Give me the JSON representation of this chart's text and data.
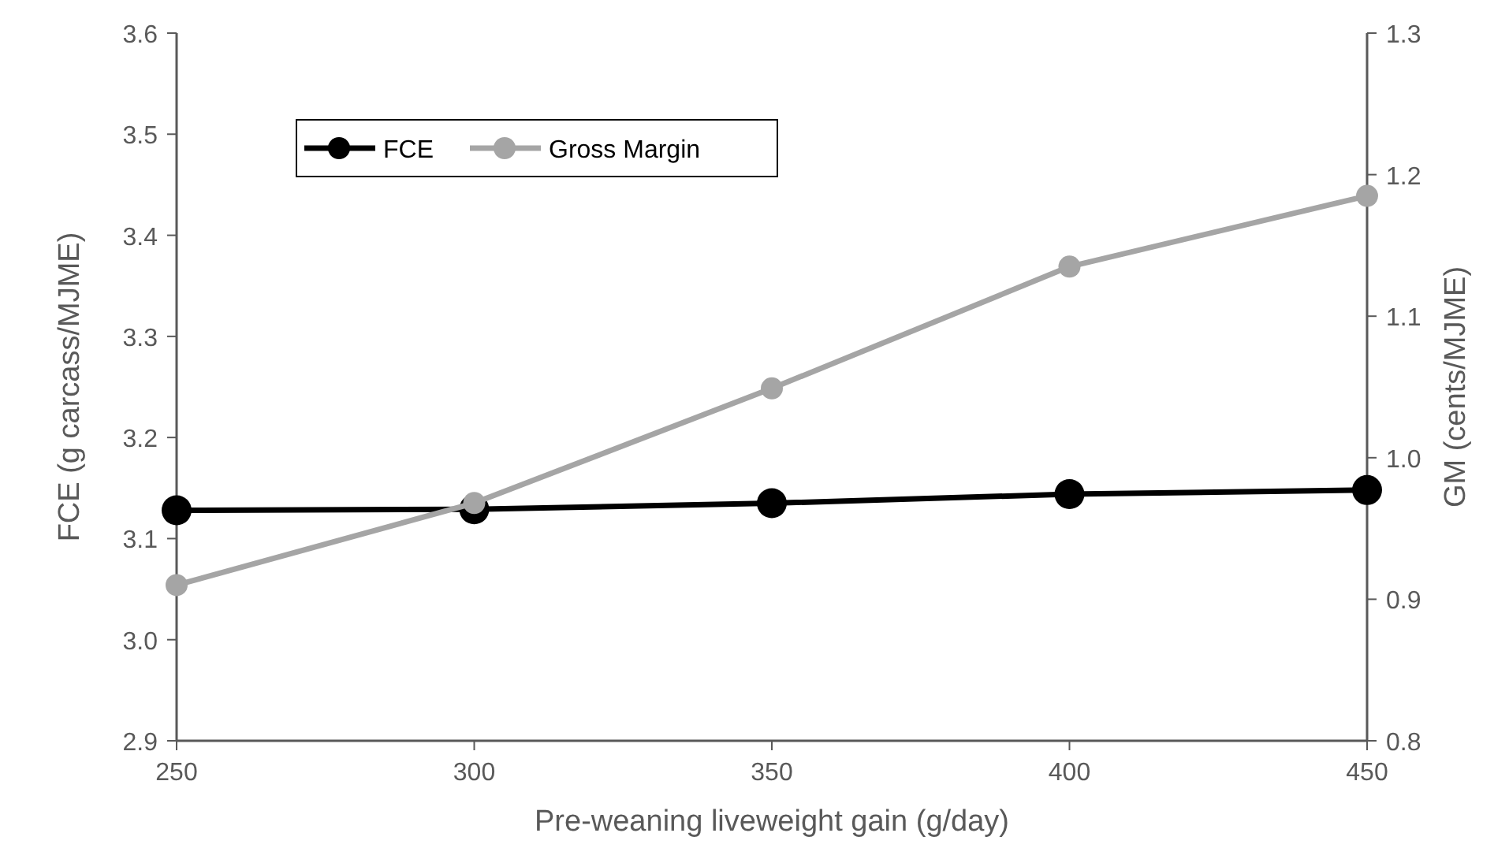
{
  "chart_data": {
    "type": "line",
    "xlabel": "Pre-weaning liveweight gain (g/day)",
    "ylabel": "FCE (g carcass/MJME)",
    "y2label": "GM (cents/MJME)",
    "x": [
      250,
      300,
      350,
      400,
      450
    ],
    "series": [
      {
        "name": "FCE",
        "color": "#000000",
        "values": [
          3.128,
          3.129,
          3.135,
          3.144,
          3.148
        ]
      },
      {
        "name": "Gross Margin",
        "color": "#a5a5a5",
        "values": [
          0.91,
          0.968,
          1.049,
          1.135,
          1.185
        ],
        "axis": "y2"
      }
    ],
    "xlim": [
      250,
      450
    ],
    "xticks": [
      250,
      300,
      350,
      400,
      450
    ],
    "ylim": [
      2.9,
      3.6
    ],
    "yticks": [
      {
        "value": 2.9,
        "label": "2.9"
      },
      {
        "value": 3.0,
        "label": "3.0"
      },
      {
        "value": 3.1,
        "label": "3.1"
      },
      {
        "value": 3.2,
        "label": "3.2"
      },
      {
        "value": 3.3,
        "label": "3.3"
      },
      {
        "value": 3.4,
        "label": "3.4"
      },
      {
        "value": 3.5,
        "label": "3.5"
      },
      {
        "value": 3.6,
        "label": "3.6"
      }
    ],
    "y2lim": [
      0.8,
      1.3
    ],
    "y2ticks": [
      {
        "value": 0.8,
        "label": "0.8"
      },
      {
        "value": 0.9,
        "label": "0.9"
      },
      {
        "value": 1.0,
        "label": "1.0"
      },
      {
        "value": 1.1,
        "label": "1.1"
      },
      {
        "value": 1.2,
        "label": "1.2"
      },
      {
        "value": 1.3,
        "label": "1.3"
      }
    ],
    "marker": "circle",
    "line_style": "solid",
    "legend": "top left",
    "grid": false
  }
}
